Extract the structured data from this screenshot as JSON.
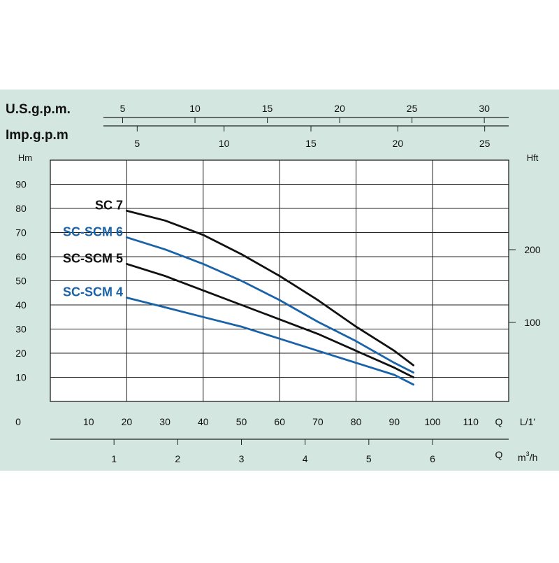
{
  "chart_data": {
    "type": "line",
    "title": "",
    "xlabel": "Q",
    "x_unit": "L/1'",
    "ylabel": "Hm",
    "y2label": "Hft",
    "xlim": [
      0,
      120
    ],
    "ylim": [
      0,
      100
    ],
    "x_ticks": [
      "0",
      "10",
      "20",
      "30",
      "40",
      "50",
      "60",
      "70",
      "80",
      "90",
      "100",
      "110"
    ],
    "y_ticks": [
      "10",
      "20",
      "30",
      "40",
      "50",
      "60",
      "70",
      "80",
      "90"
    ],
    "hft_ticks": [
      "100",
      "200"
    ],
    "us_gpm_label": "U.S.g.p.m.",
    "us_gpm_ticks": [
      "5",
      "10",
      "15",
      "20",
      "25",
      "30"
    ],
    "imp_gpm_label": "Imp.g.p.m",
    "imp_gpm_ticks": [
      "5",
      "10",
      "15",
      "20",
      "25"
    ],
    "m3h_label": "Q",
    "m3h_unit_base": "m",
    "m3h_unit_sup": "3",
    "m3h_unit_tail": "/h",
    "m3h_ticks": [
      "1",
      "2",
      "3",
      "4",
      "5",
      "6"
    ],
    "grid": true,
    "colors": {
      "background": "#d3e6df",
      "black": "#111111",
      "blue": "#1a63a8"
    },
    "series": [
      {
        "name": "SC 7",
        "color": "black",
        "x": [
          20,
          30,
          40,
          50,
          60,
          70,
          80,
          90,
          95
        ],
        "values": [
          79,
          75,
          69,
          61,
          52,
          42,
          31,
          21,
          15
        ]
      },
      {
        "name": "SC-SCM 6",
        "color": "blue",
        "x": [
          20,
          30,
          40,
          50,
          60,
          70,
          80,
          90,
          95
        ],
        "values": [
          68,
          63,
          57,
          50,
          42,
          33,
          25,
          16,
          12
        ]
      },
      {
        "name": "SC-SCM 5",
        "color": "black",
        "x": [
          20,
          30,
          40,
          50,
          60,
          70,
          80,
          90,
          95
        ],
        "values": [
          57,
          52,
          46,
          40,
          34,
          28,
          21,
          14,
          10
        ]
      },
      {
        "name": "SC-SCM 4",
        "color": "blue",
        "x": [
          20,
          30,
          40,
          50,
          60,
          70,
          80,
          90,
          95
        ],
        "values": [
          43,
          39,
          35,
          31,
          26,
          21,
          16,
          11,
          7
        ]
      }
    ]
  }
}
